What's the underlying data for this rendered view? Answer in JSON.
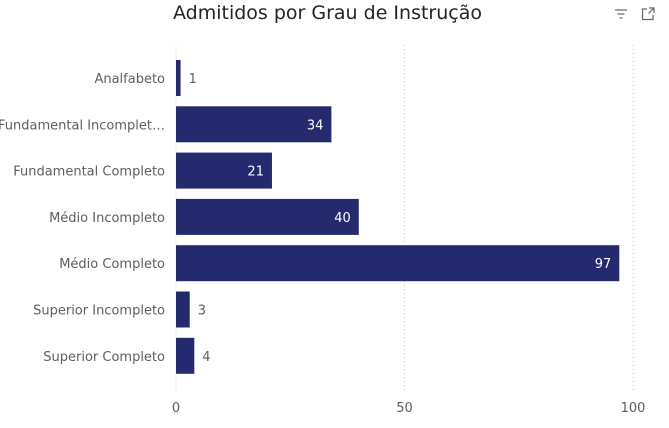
{
  "chart_data": {
    "type": "bar",
    "orientation": "horizontal",
    "title": "Admitidos por Grau de Instrução",
    "categories": [
      "Analfabeto",
      "Fundamental Incomplet…",
      "Fundamental Completo",
      "Médio Incompleto",
      "Médio Completo",
      "Superior Incompleto",
      "Superior Completo"
    ],
    "values": [
      1,
      34,
      21,
      40,
      97,
      3,
      4
    ],
    "xlim": [
      0,
      100
    ],
    "xticks": [
      "0",
      "50",
      "100"
    ],
    "xlabel": "",
    "ylabel": "",
    "grid": "vertical dotted",
    "bar_color": "#252a6e",
    "label_color": "#605e5c"
  },
  "header_icons": {
    "filter": "filter-icon",
    "focus_mode": "focus-mode-icon"
  }
}
